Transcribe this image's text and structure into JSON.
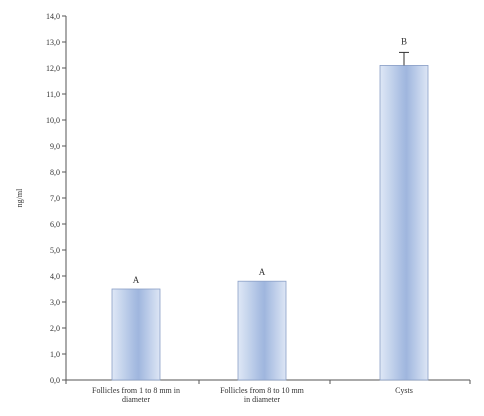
{
  "chart_data": {
    "type": "bar",
    "title": "",
    "xlabel": "",
    "ylabel": "ng/ml",
    "ylim": [
      0,
      14
    ],
    "yticks": [
      "0,0",
      "1,0",
      "2,0",
      "3,0",
      "4,0",
      "5,0",
      "6,0",
      "7,0",
      "8,0",
      "9,0",
      "10,0",
      "11,0",
      "12,0",
      "13,0",
      "14,0"
    ],
    "categories": [
      "Follicles from 1 to 8 mm in diameter",
      "Follicles from 8 to 10 mm in diameter",
      "Cysts"
    ],
    "category_lines": [
      [
        "Follicles from 1 to 8 mm in",
        "diameter"
      ],
      [
        "Follicles from 8 to 10 mm",
        "in diameter"
      ],
      [
        "Cysts"
      ]
    ],
    "values": [
      3.5,
      3.8,
      12.1
    ],
    "errors": [
      0,
      0,
      0.5
    ],
    "significance": [
      "A",
      "A",
      "B"
    ],
    "grid": false,
    "colors": {
      "bar_edge": "#dfe8f6",
      "bar_center": "#9fb6de",
      "bar_outline": "#8a9fc6",
      "axis": "#555555",
      "text": "#333333"
    }
  }
}
